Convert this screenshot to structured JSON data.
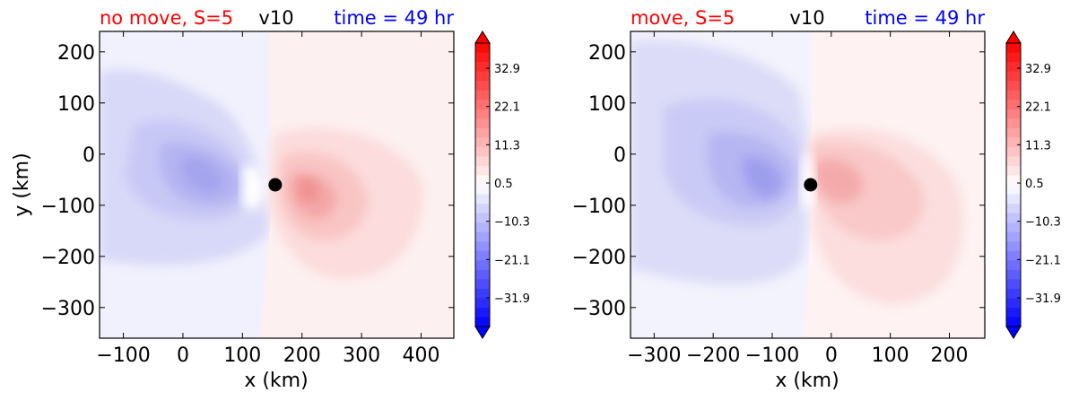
{
  "chart_data": [
    {
      "type": "heatmap",
      "title_left": "no move, S=5",
      "title_center": "v10",
      "title_right": "time = 49 hr",
      "xlabel": "x (km)",
      "ylabel": "y (km)",
      "xlim": [
        -140,
        455
      ],
      "ylim": [
        -360,
        240
      ],
      "xticks": [
        -100,
        0,
        100,
        200,
        300,
        400
      ],
      "xtick_labels": [
        "−100",
        "0",
        "100",
        "200",
        "300",
        "400"
      ],
      "yticks": [
        200,
        100,
        0,
        -100,
        -200,
        -300
      ],
      "ytick_labels": [
        "200",
        "100",
        "0",
        "−100",
        "−200",
        "−300"
      ],
      "center_marker": {
        "x": 155,
        "y": -60
      },
      "colorbar": {
        "range": [
          -40,
          40
        ],
        "ticks": [
          32.9,
          22.1,
          11.3,
          0.5,
          -10.3,
          -21.1,
          -31.9
        ],
        "tick_labels": [
          "32.9",
          "22.1",
          "11.3",
          "0.5",
          "−10.3",
          "−21.1",
          "−31.9"
        ]
      }
    },
    {
      "type": "heatmap",
      "title_left": "move, S=5",
      "title_center": "v10",
      "title_right": "time = 49 hr",
      "xlabel": "x (km)",
      "ylabel": "",
      "xlim": [
        -340,
        260
      ],
      "ylim": [
        -360,
        240
      ],
      "xticks": [
        -300,
        -200,
        -100,
        0,
        100,
        200
      ],
      "xtick_labels": [
        "−300",
        "−200",
        "−100",
        "0",
        "100",
        "200"
      ],
      "yticks": [
        200,
        100,
        0,
        -100,
        -200,
        -300
      ],
      "ytick_labels": [
        "200",
        "100",
        "0",
        "−100",
        "−200",
        "−300"
      ],
      "center_marker": {
        "x": -35,
        "y": -60
      },
      "colorbar": {
        "range": [
          -40,
          40
        ],
        "ticks": [
          32.9,
          22.1,
          11.3,
          0.5,
          -10.3,
          -21.1,
          -31.9
        ],
        "tick_labels": [
          "32.9",
          "22.1",
          "11.3",
          "0.5",
          "−10.3",
          "−21.1",
          "−31.9"
        ]
      }
    }
  ],
  "colors": {
    "title_left": "#ff0000",
    "title_center": "#000000",
    "title_right": "#0000ff"
  }
}
